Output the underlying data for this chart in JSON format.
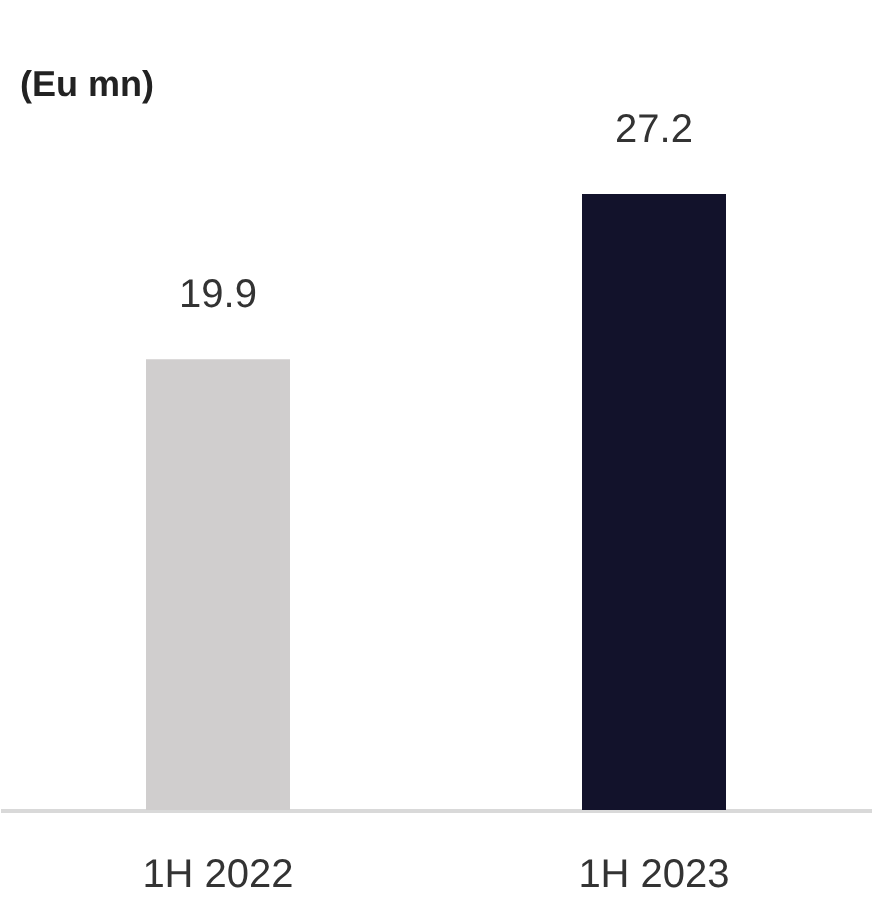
{
  "chart_data": {
    "type": "bar",
    "title": "(Eu mn)",
    "categories": [
      "1H 2022",
      "1H 2023"
    ],
    "values": [
      19.9,
      27.2
    ],
    "colors": [
      "#d0cece",
      "#12122b"
    ],
    "data_labels": true
  }
}
